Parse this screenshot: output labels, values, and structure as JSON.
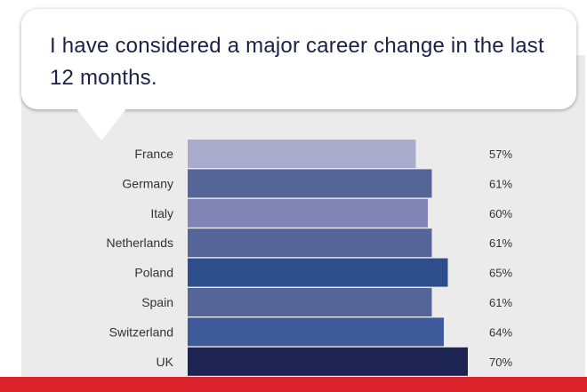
{
  "question": "I have considered a major career change in the last 12 months.",
  "chart_data": {
    "type": "bar",
    "orientation": "horizontal",
    "title": "",
    "categories": [
      "France",
      "Germany",
      "Italy",
      "Netherlands",
      "Poland",
      "Spain",
      "Switzerland",
      "UK"
    ],
    "values": [
      57,
      61,
      60,
      61,
      65,
      61,
      64,
      70
    ],
    "value_labels": [
      "57%",
      "61%",
      "60%",
      "61%",
      "65%",
      "61%",
      "64%",
      "70%"
    ],
    "bar_colors": [
      "#a9abcd",
      "#566597",
      "#8284b6",
      "#566597",
      "#2e4e8b",
      "#566597",
      "#3e5a98",
      "#1e2452"
    ],
    "unit": "%",
    "xlim": [
      0,
      100
    ],
    "grid": false,
    "legend": "none"
  },
  "colors": {
    "panel": "#ebebeb",
    "text": "#1c2148",
    "footer_bar": "#d9222a"
  }
}
